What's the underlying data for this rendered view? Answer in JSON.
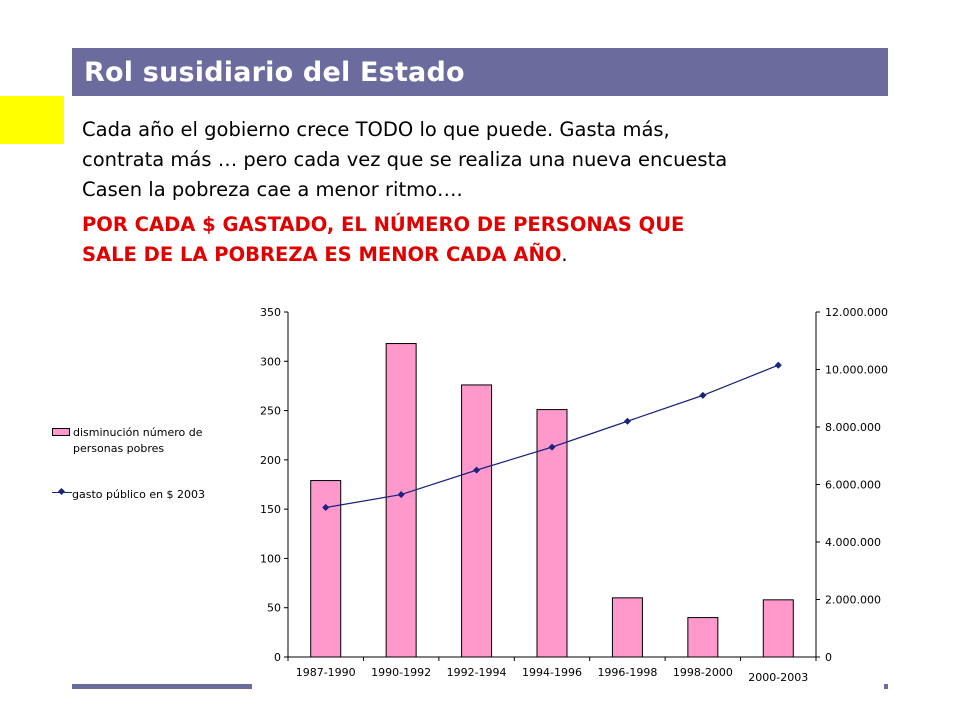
{
  "slide": {
    "title": "Rol susidiario del Estado",
    "body_lines": [
      "Cada año el gobierno crece TODO lo que puede. Gasta más,",
      "contrata más … pero cada vez que se realiza una nueva encuesta",
      "Casen la pobreza cae a menor ritmo…."
    ],
    "emphasis_lines": [
      "POR CADA $ GASTADO, EL NÚMERO DE PERSONAS QUE",
      "SALE DE LA POBREZA ES MENOR CADA AÑO"
    ],
    "emphasis_end": ".",
    "colors": {
      "title_bar": "#6b6b9e",
      "accent_square": "#ffff00",
      "emphasis": "#e00000"
    }
  },
  "chart_data": {
    "type": "bar",
    "categories": [
      "1987-1990",
      "1990-1992",
      "1992-1994",
      "1994-1996",
      "1996-1998",
      "1998-2000",
      "2000-2003"
    ],
    "series": [
      {
        "name": "disminución número de personas pobres",
        "type": "bar",
        "axis": "left",
        "color": "#ff99cc",
        "values": [
          179,
          318,
          276,
          251,
          60,
          40,
          58
        ]
      },
      {
        "name": "gasto público en $ 2003",
        "type": "line",
        "axis": "right",
        "color": "#1a237e",
        "values": [
          5200000,
          5650000,
          6500000,
          7300000,
          8200000,
          9100000,
          10150000
        ]
      }
    ],
    "ylim_left": [
      0,
      350
    ],
    "yticks_left": [
      "0",
      "50",
      "100",
      "150",
      "200",
      "250",
      "300",
      "350"
    ],
    "ylim_right": [
      0,
      12000000
    ],
    "yticks_right": [
      "0",
      "2.000.000",
      "4.000.000",
      "6.000.000",
      "8.000.000",
      "10.000.000",
      "12.000.000"
    ],
    "legend_position": "left",
    "grid": false
  }
}
